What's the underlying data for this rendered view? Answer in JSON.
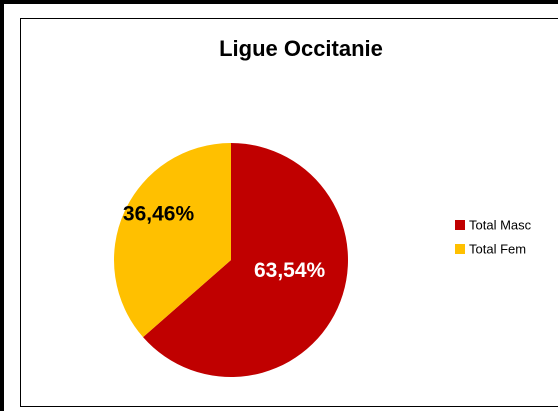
{
  "chart_data": {
    "type": "pie",
    "title": "Ligue Occitanie",
    "categories": [
      "Total Masc",
      "Total Fem"
    ],
    "values": [
      63.54,
      36.46
    ],
    "value_labels": [
      "63,54%",
      "36,46%"
    ],
    "colors": [
      "#c00000",
      "#ffc000"
    ],
    "label_colors": [
      "#ffffff",
      "#000000"
    ],
    "legend": "right"
  }
}
